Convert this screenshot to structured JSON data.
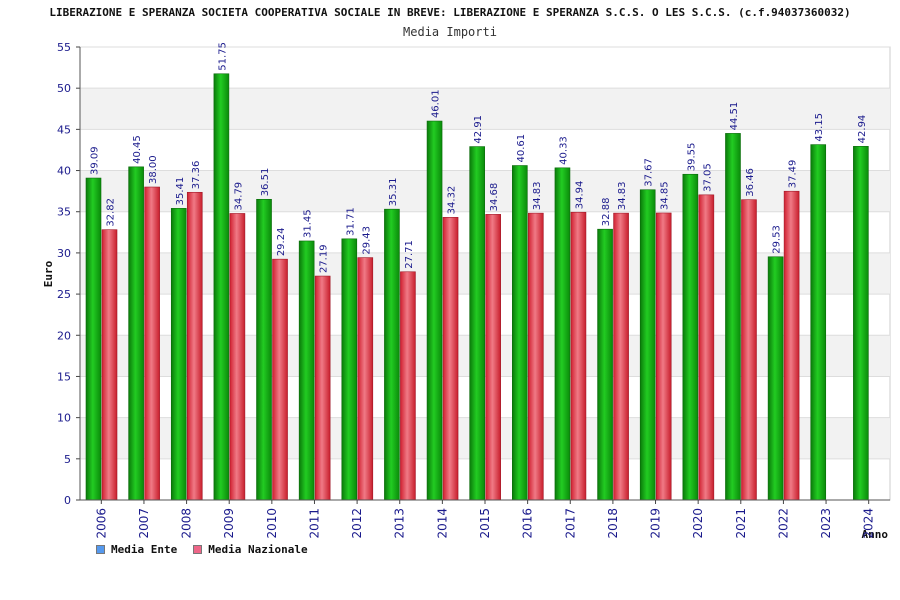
{
  "chart_data": {
    "type": "bar",
    "title": "LIBERAZIONE E SPERANZA SOCIETA COOPERATIVA SOCIALE IN BREVE: LIBERAZIONE E SPERANZA S.C.S. O LES S.C.S. (c.f.94037360032)",
    "subtitle": "Media Importi",
    "xlabel": "Anno",
    "ylabel": "Euro",
    "ylim": [
      0,
      55
    ],
    "yticks": [
      "0",
      "5",
      "10",
      "15",
      "20",
      "25",
      "30",
      "35",
      "40",
      "45",
      "50",
      "55"
    ],
    "categories": [
      "2006",
      "2007",
      "2008",
      "2009",
      "2010",
      "2011",
      "2012",
      "2013",
      "2014",
      "2015",
      "2016",
      "2017",
      "2018",
      "2019",
      "2020",
      "2021",
      "2022",
      "2023",
      "2024"
    ],
    "series": [
      {
        "name": "Media Ente",
        "color": "#1aa51a",
        "values": [
          39.09,
          40.45,
          35.41,
          51.75,
          36.51,
          31.45,
          31.71,
          35.31,
          46.01,
          42.91,
          40.61,
          40.33,
          32.88,
          37.67,
          39.55,
          44.51,
          29.53,
          43.15,
          42.94
        ],
        "labels": [
          "39.09",
          "40.45",
          "35.41",
          "51.75",
          "36.51",
          "31.45",
          "31.71",
          "35.31",
          "46.01",
          "42.91",
          "40.61",
          "40.33",
          "32.88",
          "37.67",
          "39.55",
          "44.51",
          "29.53",
          "43.15",
          "42.94"
        ]
      },
      {
        "name": "Media Nazionale",
        "color": "#e03040",
        "values": [
          32.82,
          38.0,
          37.36,
          34.79,
          29.24,
          27.19,
          29.43,
          27.71,
          34.32,
          34.68,
          34.83,
          34.94,
          34.83,
          34.85,
          37.05,
          36.46,
          37.49,
          null,
          null
        ],
        "labels": [
          "32.82",
          "38.00",
          "37.36",
          "34.79",
          "29.24",
          "27.19",
          "29.43",
          "27.71",
          "34.32",
          "34.68",
          "34.83",
          "34.94",
          "34.83",
          "34.85",
          "37.05",
          "36.46",
          "37.49",
          null,
          null
        ]
      }
    ],
    "legend": [
      {
        "label": "Media Ente",
        "color": "#5599ee"
      },
      {
        "label": "Media Nazionale",
        "color": "#ee6688"
      }
    ]
  }
}
